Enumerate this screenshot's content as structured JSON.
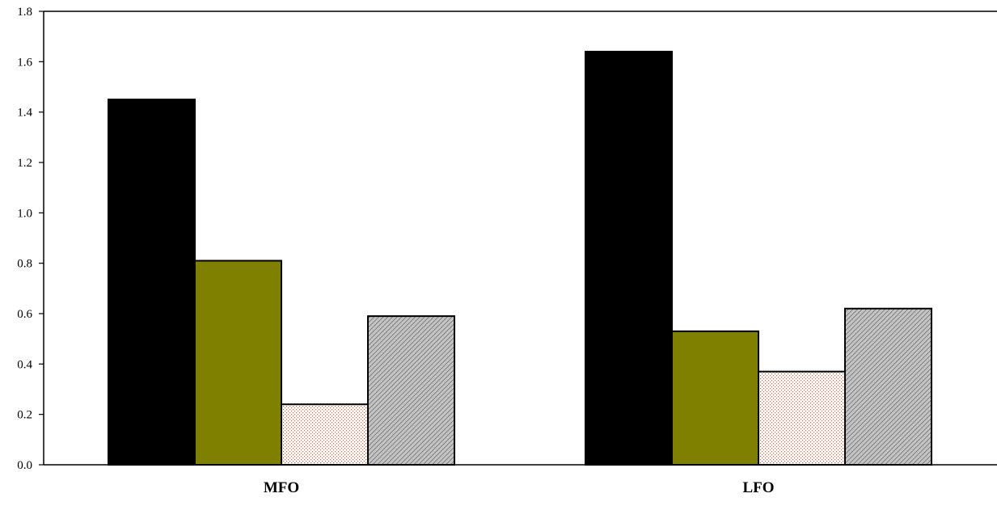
{
  "chart_data": {
    "type": "bar",
    "title": "",
    "xlabel": "",
    "ylabel": "",
    "categories": [
      "MFO",
      "LFO"
    ],
    "series": [
      {
        "values": [
          1.45,
          1.64
        ],
        "color": "#000000",
        "pattern": "solid"
      },
      {
        "values": [
          0.81,
          0.53
        ],
        "color": "#808000",
        "pattern": "solid"
      },
      {
        "values": [
          0.24,
          0.37
        ],
        "color": "#c0684a",
        "pattern": "dots"
      },
      {
        "values": [
          0.59,
          0.62
        ],
        "color": "#7a7a7a",
        "pattern": "diagonal-hatch"
      }
    ],
    "ylim": [
      0,
      1.8
    ],
    "yticks": [
      "0.0",
      "0.2",
      "0.4",
      "0.6",
      "0.8",
      "1.0",
      "1.2",
      "1.4",
      "1.6",
      "1.8"
    ],
    "grid": false,
    "legend": "none"
  }
}
